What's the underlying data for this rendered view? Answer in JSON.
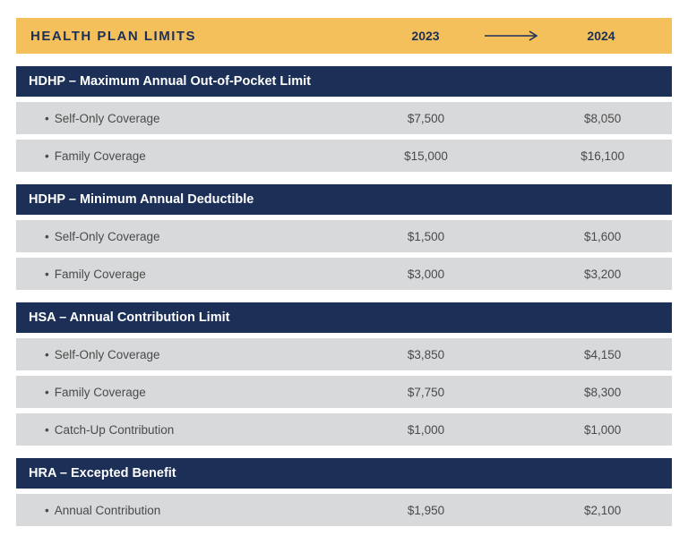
{
  "colors": {
    "header_bg": "#f3c05b",
    "header_text": "#1b2f57",
    "arrow": "#1b2f57",
    "section_header_bg": "#1b2f57",
    "section_header_text": "#ffffff",
    "row_bg": "#d8d9db",
    "row_text": "#4a4a4a",
    "page_bg": "#ffffff"
  },
  "header": {
    "title": "HEALTH PLAN LIMITS",
    "year_from": "2023",
    "year_to": "2024"
  },
  "sections": [
    {
      "title": "HDHP – Maximum Annual Out-of-Pocket Limit",
      "rows": [
        {
          "label": "Self-Only Coverage",
          "v1": "$7,500",
          "v2": "$8,050"
        },
        {
          "label": "Family Coverage",
          "v1": "$15,000",
          "v2": "$16,100"
        }
      ]
    },
    {
      "title": "HDHP – Minimum Annual Deductible",
      "rows": [
        {
          "label": "Self-Only Coverage",
          "v1": "$1,500",
          "v2": "$1,600"
        },
        {
          "label": "Family Coverage",
          "v1": "$3,000",
          "v2": "$3,200"
        }
      ]
    },
    {
      "title": "HSA – Annual Contribution Limit",
      "rows": [
        {
          "label": "Self-Only Coverage",
          "v1": "$3,850",
          "v2": "$4,150"
        },
        {
          "label": "Family Coverage",
          "v1": "$7,750",
          "v2": "$8,300"
        },
        {
          "label": "Catch-Up Contribution",
          "v1": "$1,000",
          "v2": "$1,000"
        }
      ]
    },
    {
      "title": "HRA – Excepted Benefit",
      "rows": [
        {
          "label": "Annual Contribution",
          "v1": "$1,950",
          "v2": "$2,100"
        }
      ]
    }
  ]
}
